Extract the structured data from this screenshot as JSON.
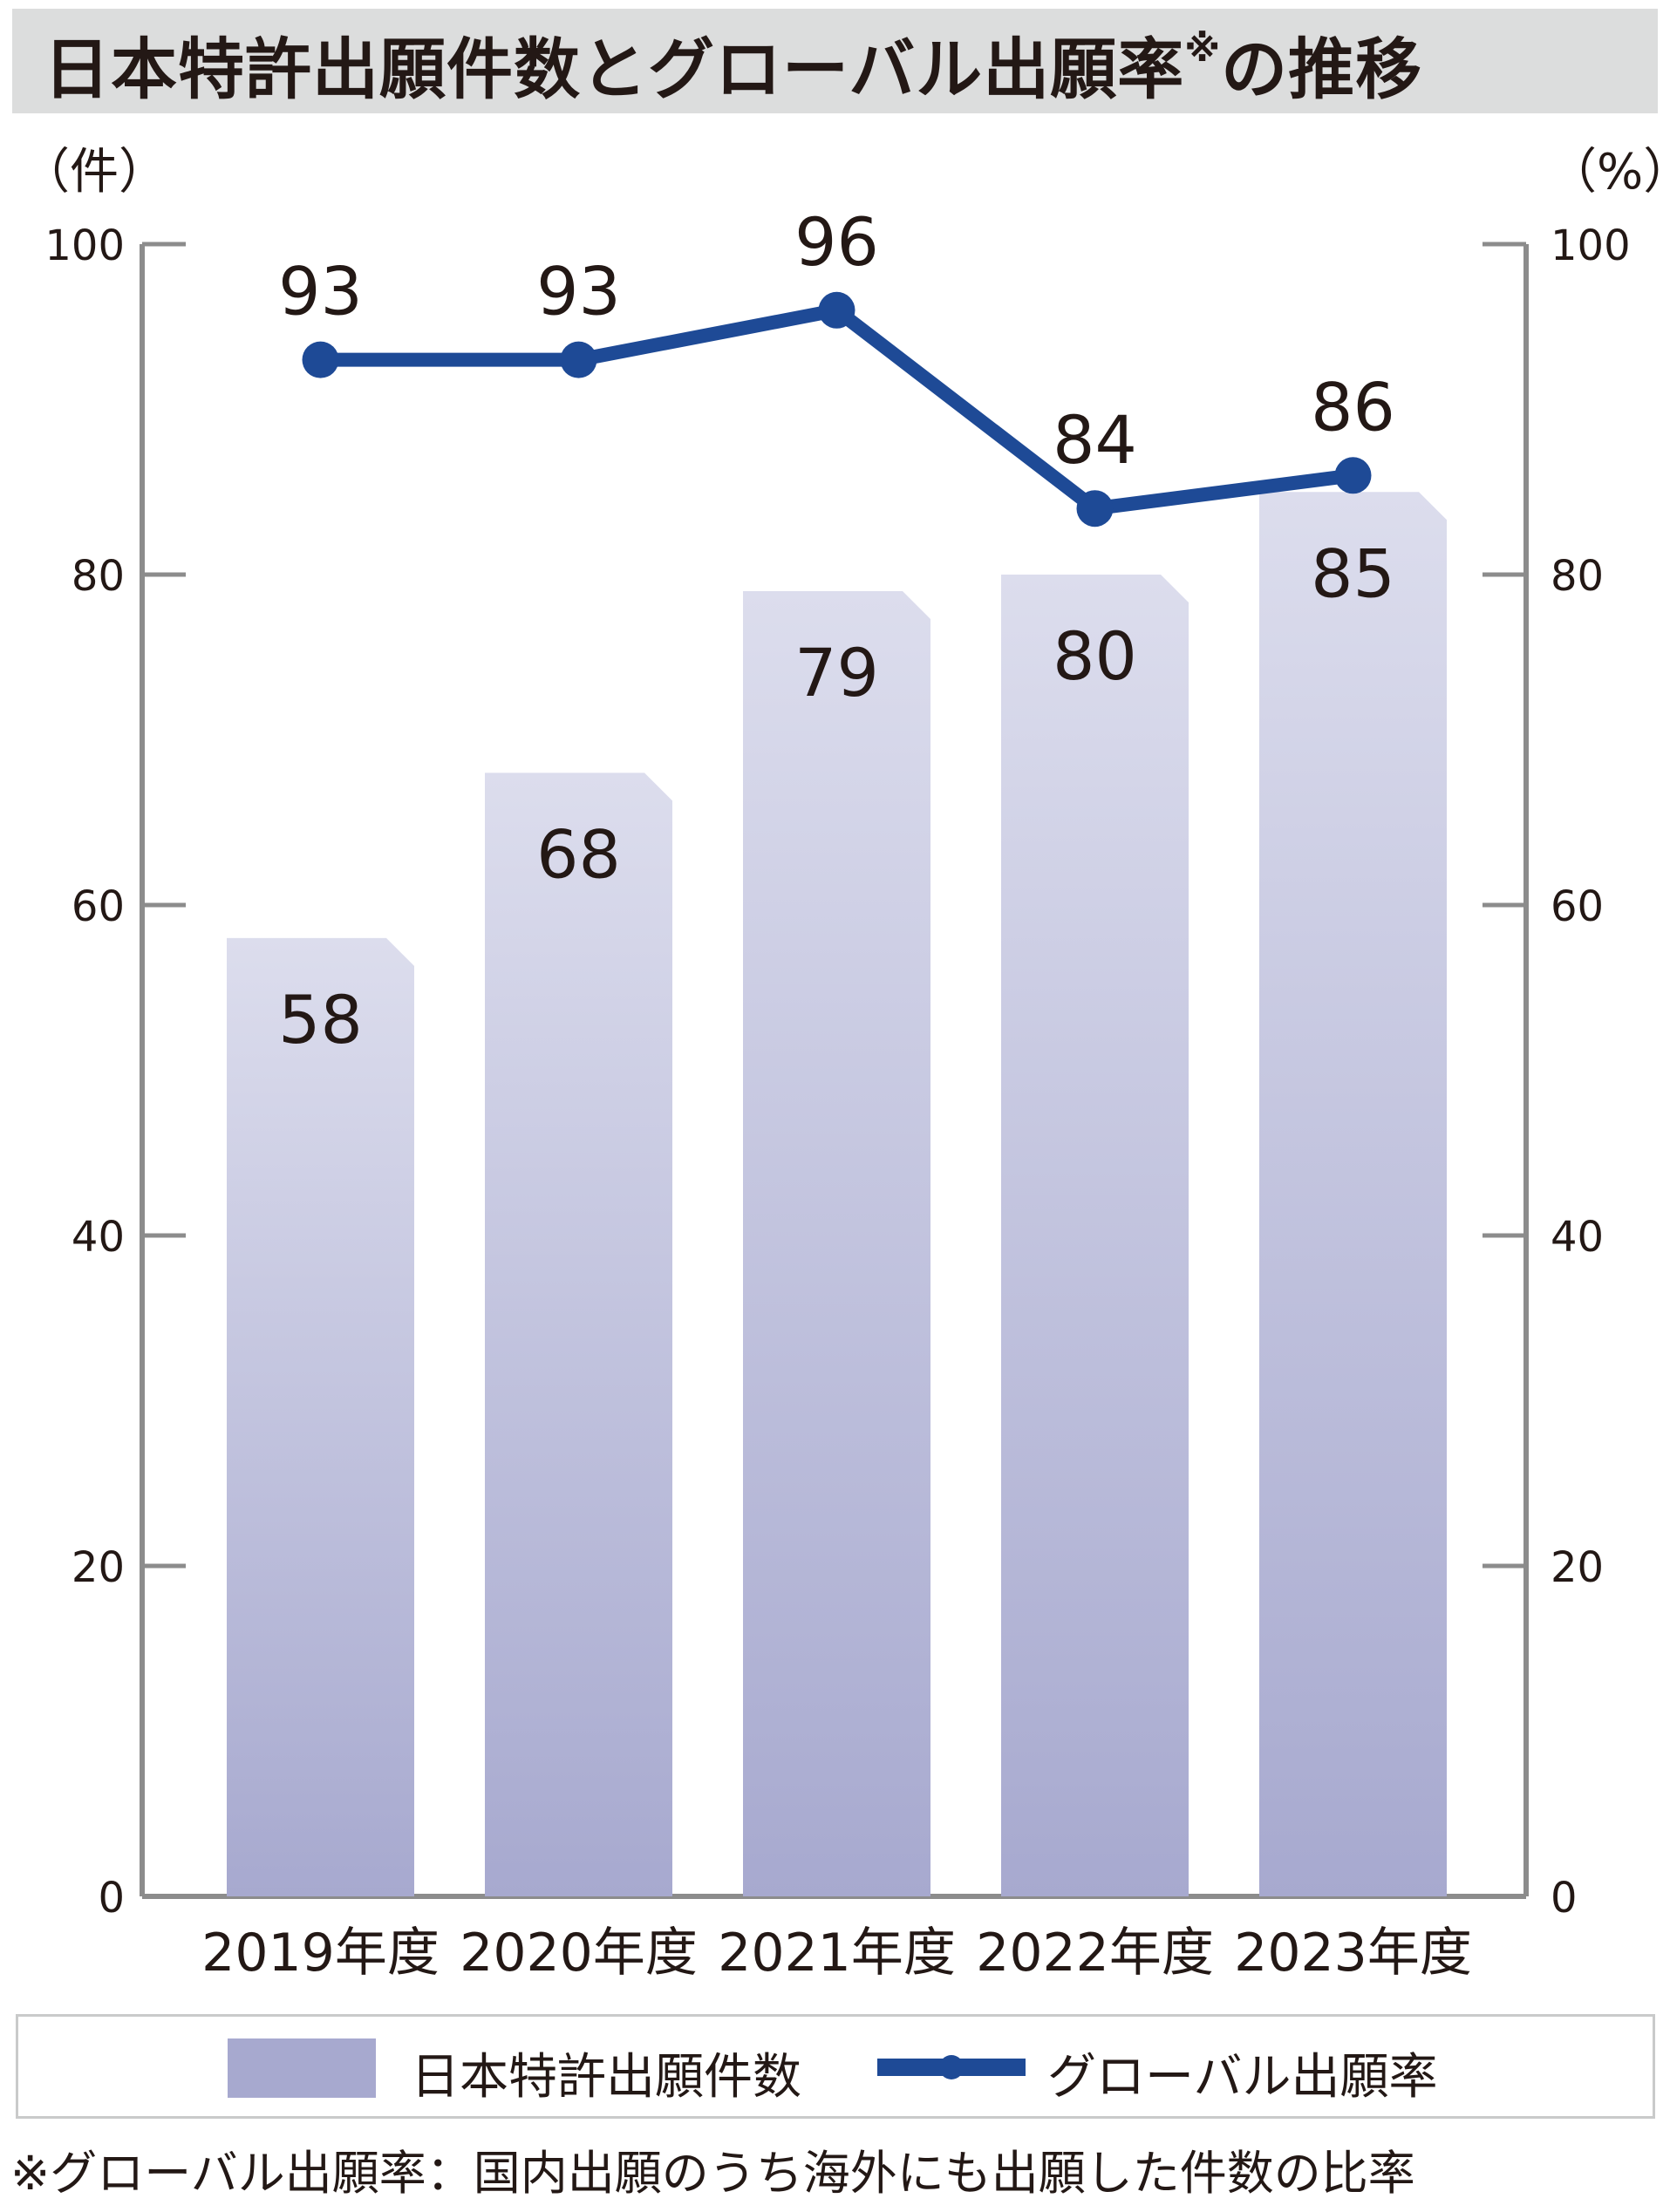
{
  "title": "日本特許出願件数とグローバル出願率",
  "title_suffix_mark": "※",
  "title_end": "の推移",
  "left_unit": "（件）",
  "right_unit": "（%）",
  "legend": {
    "bar_label": "日本特許出願件数",
    "line_label": "グローバル出願率"
  },
  "footnote": "※グローバル出願率：国内出願のうち海外にも出願した件数の比率",
  "colors": {
    "bar_top": "#dcdded",
    "bar_bottom": "#a7a9cf",
    "line": "#1e4a96",
    "axis": "#8c8c8c"
  },
  "chart_data": {
    "type": "bar+line",
    "categories": [
      "2019年度",
      "2020年度",
      "2021年度",
      "2022年度",
      "2023年度"
    ],
    "series": [
      {
        "name": "日本特許出願件数",
        "type": "bar",
        "axis": "left",
        "values": [
          58,
          68,
          79,
          80,
          85
        ]
      },
      {
        "name": "グローバル出願率",
        "type": "line",
        "axis": "right",
        "values": [
          93,
          93,
          96,
          84,
          86
        ]
      }
    ],
    "left_axis": {
      "ylim": [
        0,
        100
      ],
      "ticks": [
        0,
        20,
        40,
        60,
        80,
        100
      ]
    },
    "right_axis": {
      "ylim": [
        0,
        100
      ],
      "ticks": [
        0,
        20,
        40,
        60,
        80,
        100
      ]
    },
    "grid": false,
    "legend_position": "bottom"
  }
}
